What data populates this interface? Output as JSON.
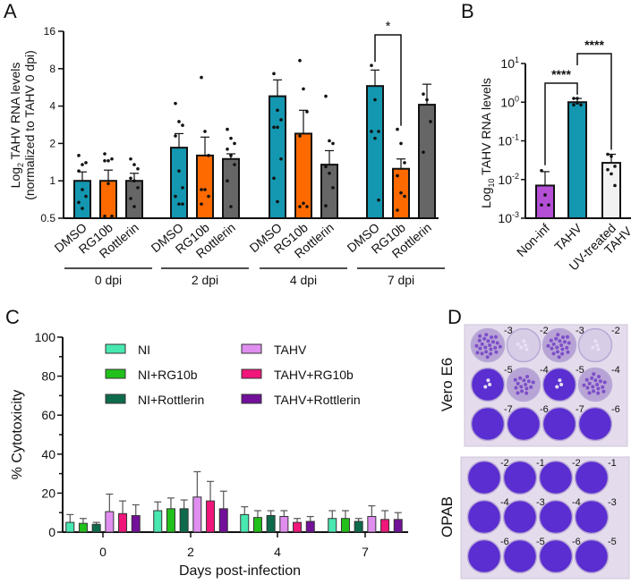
{
  "panel_labels": {
    "a": "A",
    "b": "B",
    "c": "C",
    "d": "D"
  },
  "chart_data": [
    {
      "type": "bar",
      "panel": "A",
      "ylabel_line1": "Log",
      "ylabel_sub": "2",
      "ylabel_line1_rest": " TAHV RNA levels",
      "ylabel_line2": "(normalized to TAHV 0 dpi)",
      "yscale": "log2",
      "ylim": [
        0.5,
        16
      ],
      "yticks": [
        "0.5",
        "1",
        "2",
        "4",
        "8",
        "16"
      ],
      "ytick_values": [
        0.5,
        1,
        2,
        4,
        8,
        16
      ],
      "categories": [
        "DMSO",
        "RG10b",
        "Rottlerin"
      ],
      "colors": {
        "DMSO": "#1497b0",
        "RG10b": "#ff6a00",
        "Rottlerin": "#666666"
      },
      "groups": [
        {
          "label": "0 dpi",
          "values": [
            1.0,
            1.0,
            1.0
          ],
          "errors": [
            1.18,
            1.22,
            1.15
          ],
          "points": [
            [
              1.6,
              1.35,
              1.4,
              1.2,
              0.85,
              0.75,
              0.67,
              0.6
            ],
            [
              1.65,
              1.45,
              1.5,
              1.45,
              0.95,
              0.52,
              0.52
            ],
            [
              1.5,
              1.35,
              1.25,
              1.05,
              1.0,
              0.88,
              0.72,
              0.62
            ]
          ]
        },
        {
          "label": "2 dpi",
          "values": [
            1.85,
            1.6,
            1.5
          ],
          "errors": [
            2.4,
            2.25,
            1.65
          ],
          "points": [
            [
              4.2,
              3.0,
              2.8,
              2.3,
              1.2,
              0.88,
              0.75,
              0.65,
              0.65
            ],
            [
              6.8,
              2.5,
              1.6,
              0.85,
              0.85,
              0.75,
              0.65
            ],
            [
              2.6,
              2.2,
              2.0,
              1.8,
              1.6,
              1.35,
              1.0,
              0.62
            ]
          ]
        },
        {
          "label": "4 dpi",
          "values": [
            4.8,
            2.4,
            1.35
          ],
          "errors": [
            6.5,
            3.7,
            1.75
          ],
          "points": [
            [
              7.3,
              3.7,
              3.1,
              2.7,
              2.7,
              1.5,
              1.05,
              0.68
            ],
            [
              9.3,
              5.5,
              3.6,
              2.3,
              0.66,
              0.62,
              0.62
            ],
            [
              4.8,
              2.1,
              2.0,
              1.3,
              1.15,
              0.88,
              0.63
            ]
          ]
        },
        {
          "label": "7 dpi",
          "values": [
            5.8,
            1.25,
            4.1
          ],
          "errors": [
            7.8,
            1.5,
            6.0
          ],
          "points": [
            [
              8.5,
              4.5,
              2.5,
              2.5,
              2.2,
              0.7
            ],
            [
              2.6,
              2.0,
              1.4,
              1.1,
              0.8,
              0.75,
              0.58
            ],
            [
              5.0,
              4.5,
              3.0,
              1.7
            ]
          ]
        }
      ],
      "significance": {
        "group": "7 dpi",
        "between": [
          "DMSO",
          "RG10b"
        ],
        "label": "*"
      }
    },
    {
      "type": "bar",
      "panel": "B",
      "ylabel_pre": "Log",
      "ylabel_sub": "10",
      "ylabel_rest": " TAHV RNA levels",
      "yscale": "log10",
      "ylim": [
        0.001,
        10
      ],
      "yticks": [
        {
          "base": "10",
          "exp": "1"
        },
        {
          "base": "10",
          "exp": "0"
        },
        {
          "base": "10",
          "exp": "-1"
        },
        {
          "base": "10",
          "exp": "-2"
        },
        {
          "base": "10",
          "exp": "-3"
        }
      ],
      "ytick_values": [
        10,
        1,
        0.1,
        0.01,
        0.001
      ],
      "categories": [
        "Non-inf",
        "TAHV",
        "UV-treated TAHV"
      ],
      "category_lines": [
        [
          "Non-inf"
        ],
        [
          "TAHV"
        ],
        [
          "UV-treated",
          "TAHV"
        ]
      ],
      "values": [
        0.007,
        1.0,
        0.027
      ],
      "errors": [
        0.016,
        1.25,
        0.045
      ],
      "colors": [
        "#b44fd6",
        "#1497b0",
        "#f2f2f2"
      ],
      "points": [
        [
          0.017,
          0.004,
          0.0022,
          0.0022
        ],
        [
          1.25,
          1.25,
          0.85,
          0.85,
          0.95
        ],
        [
          0.045,
          0.04,
          0.022,
          0.018,
          0.014,
          0.007
        ]
      ],
      "significance": [
        {
          "between": [
            "Non-inf",
            "TAHV"
          ],
          "label": "****"
        },
        {
          "between": [
            "TAHV",
            "UV-treated TAHV"
          ],
          "label": "****"
        }
      ]
    },
    {
      "type": "bar",
      "panel": "C",
      "ylabel": "% Cytotoxicity",
      "xlabel": "Days post-infection",
      "ylim": [
        0,
        100
      ],
      "yticks": [
        "0",
        "20",
        "40",
        "60",
        "80",
        "100"
      ],
      "ytick_values": [
        0,
        20,
        40,
        60,
        80,
        100
      ],
      "categories": [
        "0",
        "2",
        "4",
        "7"
      ],
      "legend_position": "top",
      "series": [
        {
          "name": "NI",
          "color": "#48e8b0",
          "values": [
            5,
            11,
            9,
            7
          ],
          "errors": [
            9,
            15.5,
            13,
            11
          ]
        },
        {
          "name": "NI+RG10b",
          "color": "#22c01a",
          "values": [
            4.5,
            12,
            7.5,
            7
          ],
          "errors": [
            7,
            17.5,
            11,
            11
          ]
        },
        {
          "name": "NI+Rottlerin",
          "color": "#0d6b4b",
          "values": [
            4,
            12,
            8.5,
            5.5
          ],
          "errors": [
            5,
            16.5,
            11,
            7
          ]
        },
        {
          "name": "TAHV",
          "color": "#e08ef0",
          "values": [
            10.5,
            18,
            8,
            8
          ],
          "errors": [
            19.5,
            31,
            11,
            13.5
          ]
        },
        {
          "name": "TAHV+RG10b",
          "color": "#f0167a",
          "values": [
            9.5,
            16,
            5,
            6.5
          ],
          "errors": [
            16,
            26,
            7,
            11
          ]
        },
        {
          "name": "TAHV+Rottlerin",
          "color": "#73109a",
          "values": [
            8.5,
            12,
            5.5,
            6.5
          ],
          "errors": [
            14,
            21,
            8,
            10
          ]
        }
      ]
    }
  ],
  "panel_d": {
    "plates": [
      {
        "label": "Vero E6",
        "dilutions": [
          [
            "-3",
            "-2",
            "-3",
            "-2"
          ],
          [
            "-5",
            "-4",
            "-5",
            "-4"
          ],
          [
            "-7",
            "-6",
            "-7",
            "-6"
          ]
        ],
        "plaque_density": [
          [
            0.9,
            0.2,
            0.8,
            0.15
          ],
          [
            0.1,
            0.6,
            0.1,
            0.7
          ],
          [
            0,
            0,
            0,
            0
          ]
        ]
      },
      {
        "label": "OPAB",
        "dilutions": [
          [
            "-2",
            "-1",
            "-2",
            "-1"
          ],
          [
            "-4",
            "-3",
            "-4",
            "-3"
          ],
          [
            "-6",
            "-5",
            "-6",
            "-5"
          ]
        ],
        "plaque_density": [
          [
            0,
            0,
            0,
            0
          ],
          [
            0,
            0,
            0,
            0
          ],
          [
            0,
            0,
            0,
            0
          ]
        ]
      }
    ]
  }
}
